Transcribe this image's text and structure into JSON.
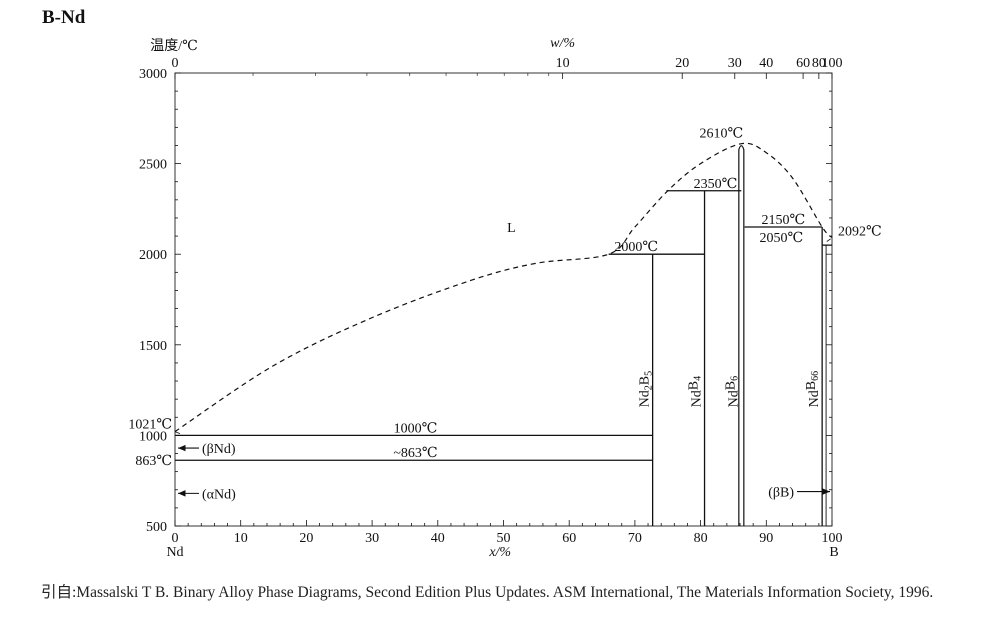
{
  "title": "B-Nd",
  "source": "引自:Massalski T B. Binary Alloy Phase Diagrams, Second Edition Plus Updates. ASM International, The Materials Information Society, 1996.",
  "chart_data": {
    "type": "phase_diagram",
    "ylabel": "温度/℃",
    "xlabel": "x/%",
    "top_xlabel": "w/%",
    "ylim": [
      500,
      3000
    ],
    "xlim": [
      0,
      100
    ],
    "y_ticks": [
      500,
      1000,
      1500,
      2000,
      2500,
      3000
    ],
    "x_ticks": [
      0,
      10,
      20,
      30,
      40,
      50,
      60,
      70,
      80,
      90,
      100
    ],
    "top_ticks": [
      {
        "label": "0",
        "x": 0
      },
      {
        "label": "10",
        "x": 59.0
      },
      {
        "label": "20",
        "x": 77.2
      },
      {
        "label": "30",
        "x": 85.2
      },
      {
        "label": "40",
        "x": 90.0
      },
      {
        "label": "60",
        "x": 95.6
      },
      {
        "label": "80",
        "x": 98.0
      },
      {
        "label": "100",
        "x": 100
      }
    ],
    "left_element": "Nd",
    "right_element": "B",
    "liquid_label": "L",
    "liquidus_points": [
      [
        0,
        1021
      ],
      [
        15,
        1385
      ],
      [
        30,
        1650
      ],
      [
        45,
        1855
      ],
      [
        55,
        1950
      ],
      [
        66,
        2000
      ],
      [
        70,
        2150
      ],
      [
        75,
        2350
      ],
      [
        80,
        2500
      ],
      [
        86.2,
        2610
      ],
      [
        90,
        2560
      ],
      [
        94,
        2420
      ],
      [
        98.5,
        2150
      ],
      [
        100,
        2092
      ]
    ],
    "isotherms": [
      {
        "label": "1000℃",
        "t": 1000,
        "x1": 0,
        "x2": 72.7
      },
      {
        "label": "~863℃",
        "t": 863,
        "x1": 0,
        "x2": 72.7
      },
      {
        "label": "2000℃",
        "t": 2000,
        "x1": 66,
        "x2": 80.6
      },
      {
        "label": "2350℃",
        "t": 2350,
        "x1": 74.8,
        "x2": 86.2
      },
      {
        "label": "2150℃",
        "t": 2150,
        "x1": 86.7,
        "x2": 98.5
      },
      {
        "label": "2050℃",
        "t": 2050,
        "x1": 98.5,
        "x2": 100
      }
    ],
    "compounds": [
      {
        "name": "Nd2B5",
        "x": 72.7,
        "top": 2000
      },
      {
        "name": "NdB4",
        "x": 80.6,
        "top": 2350
      },
      {
        "name": "NdB6",
        "x": 86.2,
        "top": 2610
      },
      {
        "name": "NdB66",
        "x": 98.5,
        "top": 2150
      }
    ],
    "point_labels": [
      {
        "label": "2610℃",
        "x": 86.2,
        "t": 2610
      },
      {
        "label": "2092℃",
        "x": 100,
        "t": 2092
      },
      {
        "label": "1021℃",
        "x": 0,
        "t": 1021
      },
      {
        "label": "863℃",
        "x": 0,
        "t": 863
      }
    ],
    "phase_labels": [
      {
        "label": "(βNd)",
        "x": 0,
        "t": 930
      },
      {
        "label": "(αNd)",
        "x": 0,
        "t": 680
      },
      {
        "label": "(βB)",
        "x": 100,
        "t": 690
      }
    ]
  }
}
